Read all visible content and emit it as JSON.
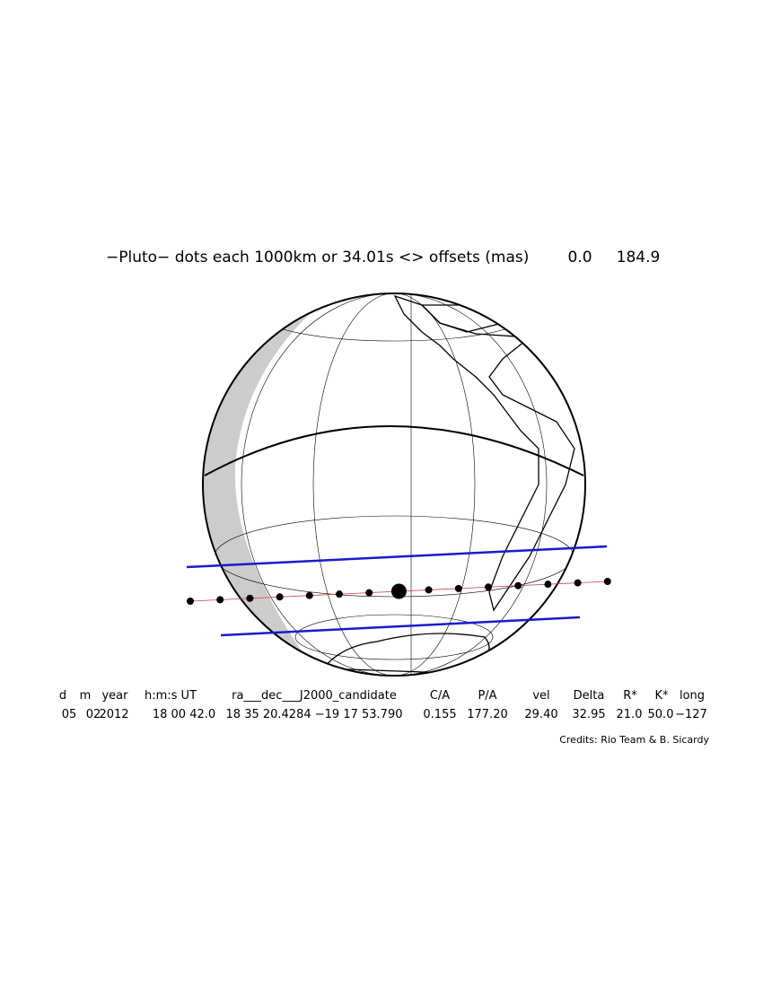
{
  "title": "−Pluto− dots each 1000km or 34.01s <> offsets (mas)",
  "offsets": [
    "0.0",
    "184.9"
  ],
  "table": {
    "headers": [
      "d",
      "m",
      "year",
      "h:m:s UT",
      "ra___dec___J2000_candidate",
      "C/A",
      "P/A",
      "vel",
      "Delta",
      "R*",
      "K*",
      "long"
    ],
    "values": [
      "05",
      "02",
      "2012",
      "18 00 42.0",
      "18 35 20.4284 −19 17 53.790",
      "0.155",
      "177.20",
      "29.40",
      "32.95",
      "21.0",
      "50.0",
      "−127"
    ]
  },
  "credits": "Credits: Rio Team & B. Sicardy"
}
